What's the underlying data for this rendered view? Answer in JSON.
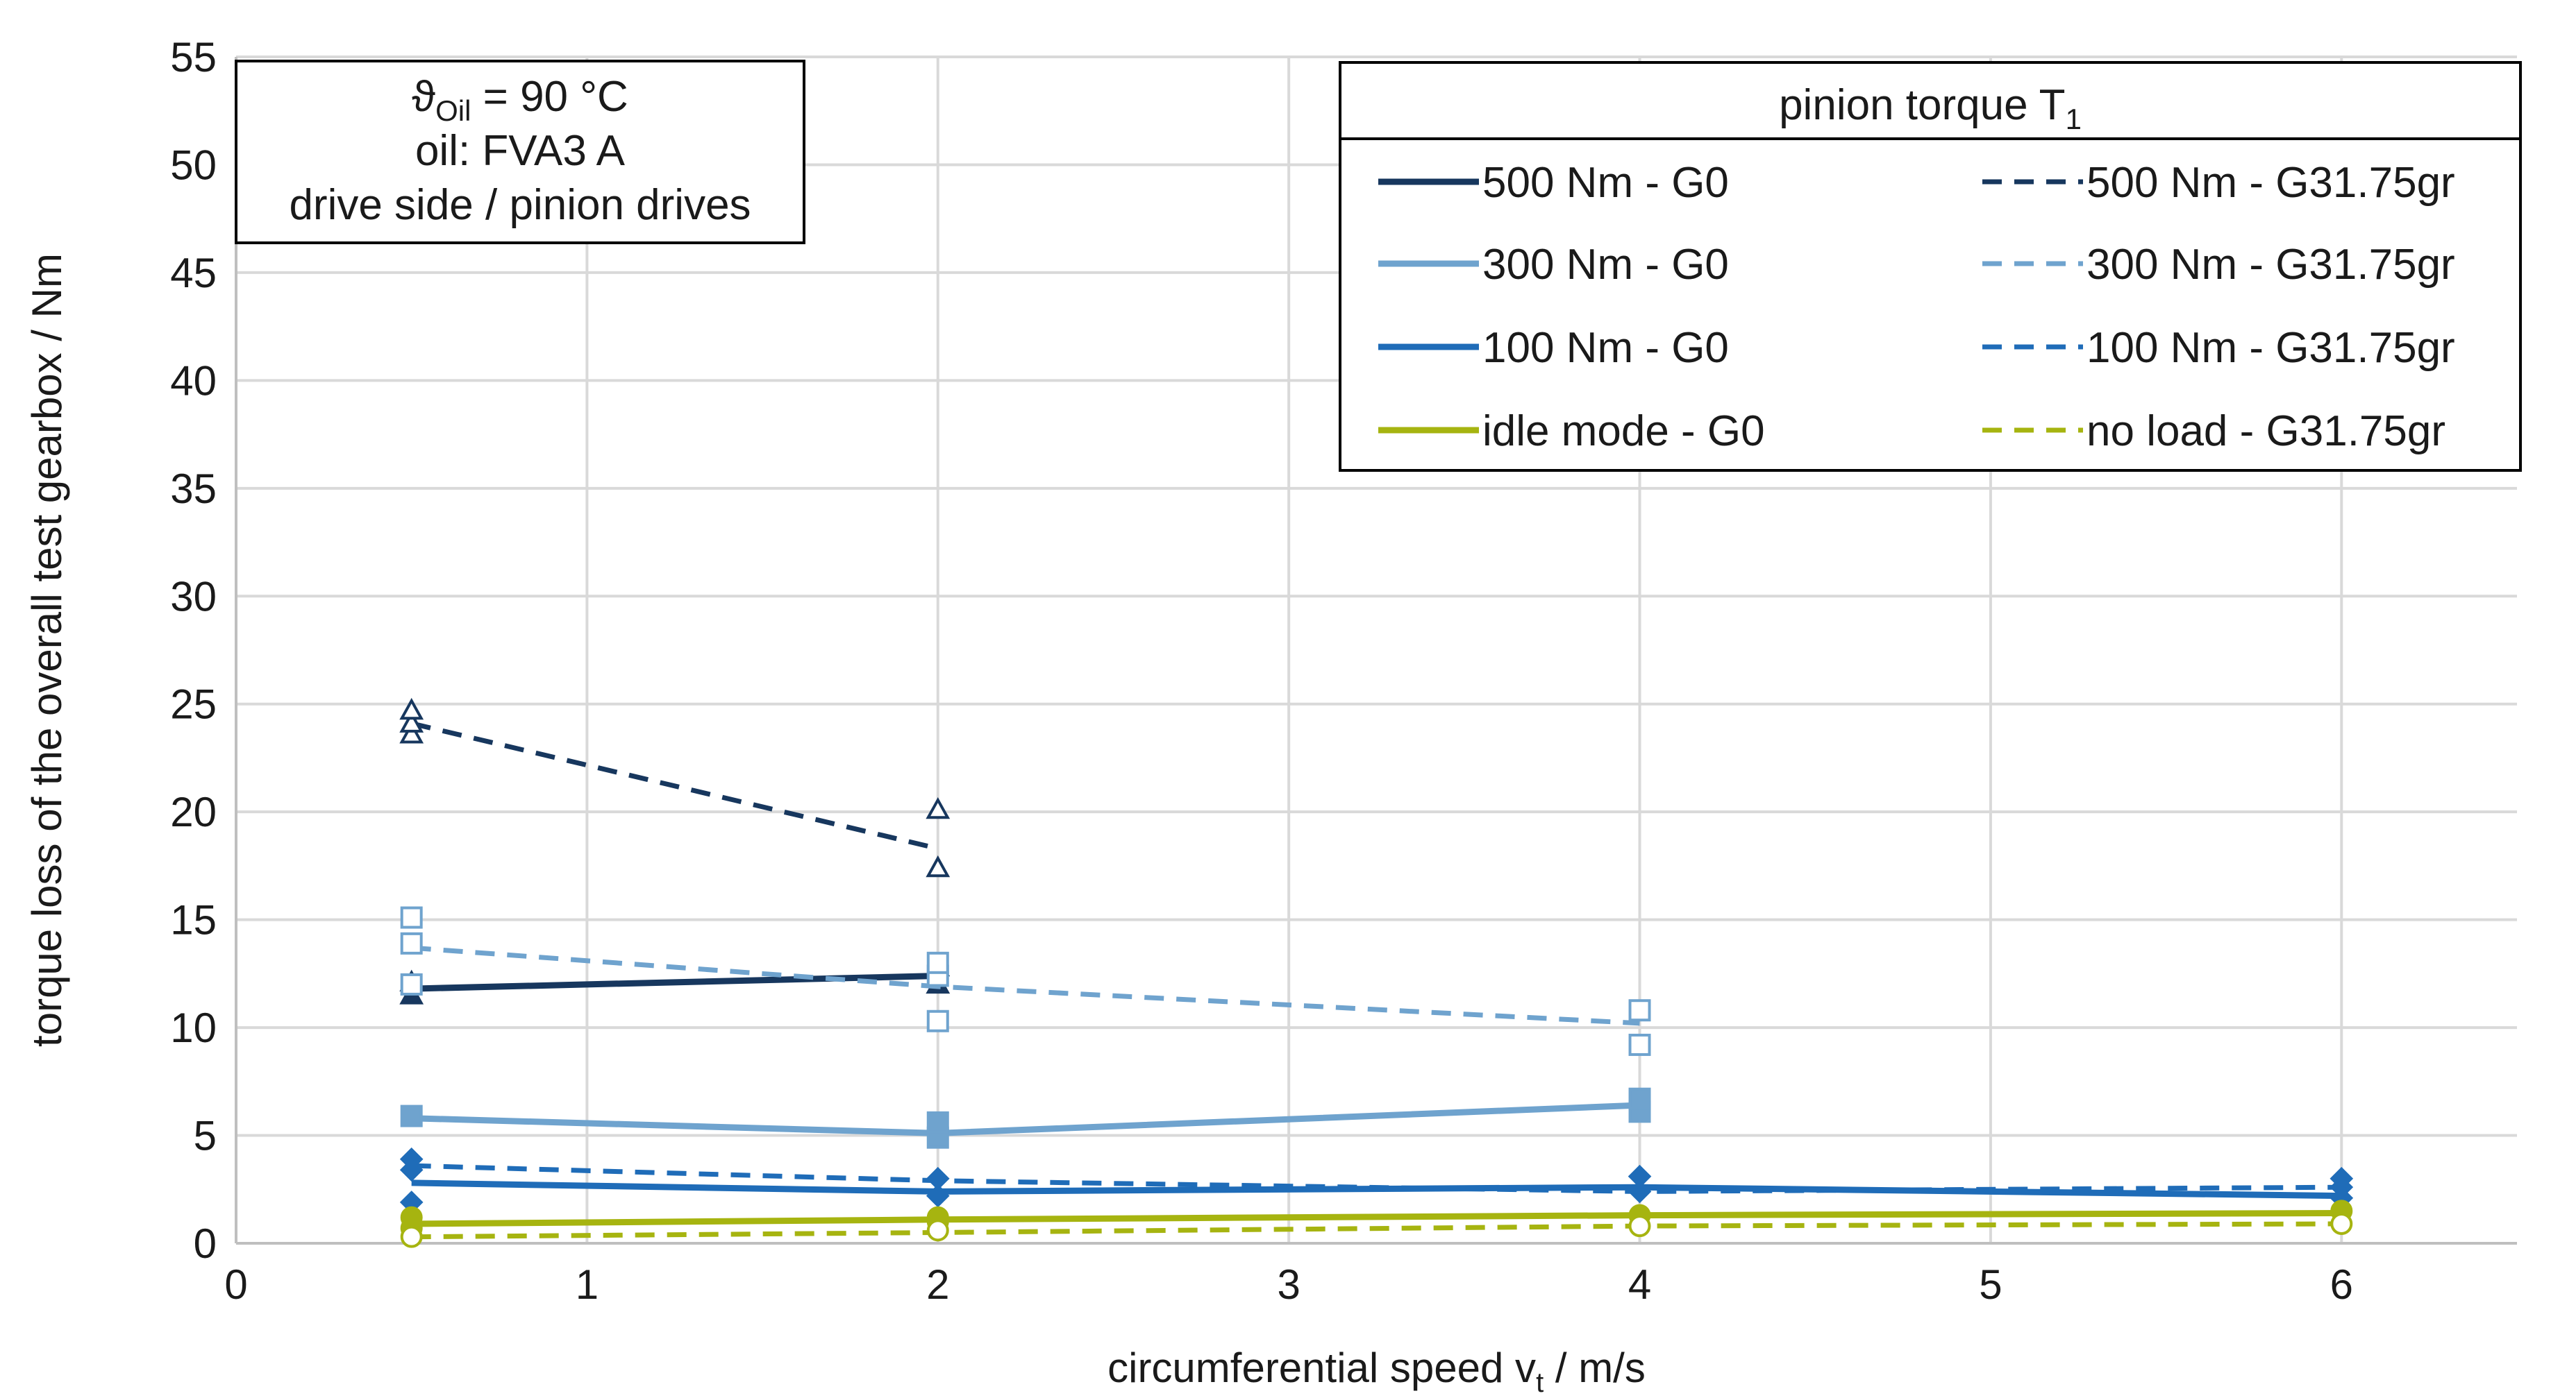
{
  "chart_data": {
    "type": "line",
    "xlabel": "circumferential speed v",
    "xlabel_sub": "t",
    "xlabel_unit": " / m/s",
    "ylabel": "torque loss of the overall test gearbox / Nm",
    "xlim": [
      0,
      6.5
    ],
    "ylim": [
      0,
      55
    ],
    "x_ticks": [
      0,
      1,
      2,
      3,
      4,
      5,
      6
    ],
    "y_ticks": [
      0,
      5,
      10,
      15,
      20,
      25,
      30,
      35,
      40,
      45,
      50,
      55
    ],
    "grid": true,
    "info_box": {
      "line1_symbol": "ϑ",
      "line1_sub": "Oil",
      "line1_rest": " = 90 °C",
      "line2": "oil:  FVA3 A",
      "line3": "drive side / pinion drives"
    },
    "legend": {
      "title": "pinion torque T",
      "title_sub": "1",
      "placement": "top-right"
    },
    "series": [
      {
        "name": "500 Nm - G0",
        "color": "#17375e",
        "dash": "solid",
        "marker": "triangle-filled",
        "x": [
          0.5,
          2
        ],
        "y": [
          11.8,
          12.4
        ],
        "points": [
          [
            0.5,
            11.5
          ],
          [
            0.5,
            12.1
          ],
          [
            2,
            12.0
          ],
          [
            2,
            12.8
          ]
        ]
      },
      {
        "name": "500 Nm - G31.75gr",
        "color": "#17375e",
        "dash": "dashed",
        "marker": "triangle-open",
        "x": [
          0.5,
          2
        ],
        "y": [
          24.1,
          18.3
        ],
        "points": [
          [
            0.5,
            23.6
          ],
          [
            0.5,
            24.1
          ],
          [
            0.5,
            24.7
          ],
          [
            2,
            17.4
          ],
          [
            2,
            20.1
          ]
        ]
      },
      {
        "name": "300 Nm - G0",
        "color": "#6fa3ce",
        "dash": "solid",
        "marker": "square-filled",
        "x": [
          0.5,
          2,
          4
        ],
        "y": [
          5.8,
          5.1,
          6.4
        ],
        "points": [
          [
            0.5,
            5.9
          ],
          [
            2,
            4.9
          ],
          [
            2,
            5.6
          ],
          [
            4,
            6.1
          ],
          [
            4,
            6.7
          ]
        ]
      },
      {
        "name": "300 Nm - G31.75gr",
        "color": "#6fa3ce",
        "dash": "dashed",
        "marker": "square-open",
        "x": [
          0.5,
          2,
          4
        ],
        "y": [
          13.7,
          11.9,
          10.2
        ],
        "points": [
          [
            0.5,
            13.9
          ],
          [
            0.5,
            15.1
          ],
          [
            0.5,
            12.0
          ],
          [
            2,
            10.3
          ],
          [
            2,
            12.4
          ],
          [
            2,
            13.0
          ],
          [
            4,
            9.2
          ],
          [
            4,
            10.8
          ]
        ]
      },
      {
        "name": "100 Nm - G0",
        "color": "#1f6cb8",
        "dash": "solid",
        "marker": "diamond-filled",
        "x": [
          0.5,
          2,
          4,
          6
        ],
        "y": [
          2.8,
          2.4,
          2.6,
          2.2
        ],
        "points": [
          [
            0.5,
            1.9
          ],
          [
            2,
            2.2
          ],
          [
            4,
            2.4
          ],
          [
            6,
            2.1
          ]
        ]
      },
      {
        "name": "100 Nm - G31.75gr",
        "color": "#1f6cb8",
        "dash": "dashed",
        "marker": "diamond-filled",
        "x": [
          0.5,
          2,
          4,
          6
        ],
        "y": [
          3.6,
          2.9,
          2.4,
          2.6
        ],
        "points": [
          [
            0.5,
            3.9
          ],
          [
            0.5,
            3.4
          ],
          [
            2,
            3.0
          ],
          [
            4,
            3.1
          ],
          [
            6,
            3.0
          ],
          [
            6,
            2.6
          ]
        ]
      },
      {
        "name": "idle mode - G0",
        "color": "#a6b410",
        "dash": "solid",
        "marker": "circle-filled",
        "x": [
          0.5,
          2,
          4,
          6
        ],
        "y": [
          0.9,
          1.1,
          1.3,
          1.4
        ],
        "points": [
          [
            0.5,
            0.7
          ],
          [
            0.5,
            1.2
          ],
          [
            2,
            1.0
          ],
          [
            2,
            1.2
          ],
          [
            4,
            1.3
          ],
          [
            6,
            1.5
          ]
        ]
      },
      {
        "name": "no load - G31.75gr",
        "color": "#a6b410",
        "dash": "dashed",
        "marker": "circle-open",
        "x": [
          0.5,
          2,
          4,
          6
        ],
        "y": [
          0.3,
          0.5,
          0.8,
          0.9
        ],
        "points": [
          [
            0.5,
            0.3
          ],
          [
            2,
            0.6
          ],
          [
            4,
            0.8
          ],
          [
            6,
            0.9
          ]
        ]
      }
    ]
  }
}
